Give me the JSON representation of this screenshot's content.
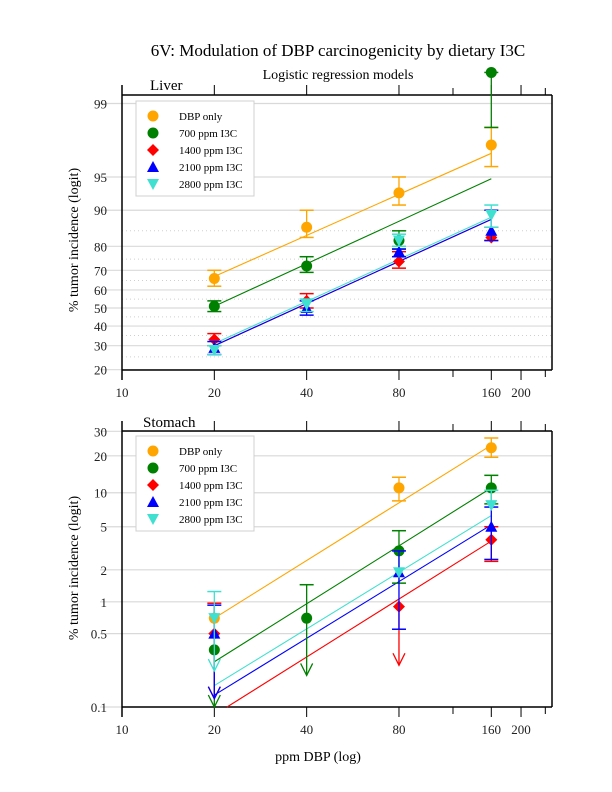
{
  "title": "6V: Modulation of DBP carcinogenicity by dietary I3C",
  "subtitle": "Logistic regression models",
  "xlabel": "ppm DBP (log)",
  "colors": {
    "DBP only": "#ffa500",
    "700 ppm I3C": "#008000",
    "1400 ppm I3C": "#ff0000",
    "2100 ppm I3C": "#0000ff",
    "2800 ppm I3C": "#40e0d0"
  },
  "chart_data": [
    {
      "type": "scatter",
      "panel": "Liver",
      "title": "Liver",
      "xlabel": "ppm DBP (log)",
      "ylabel": "% tumor incidence (logit)",
      "xscale": "log",
      "yscale": "logit",
      "xlim": [
        10,
        250
      ],
      "ylim": [
        20,
        99
      ],
      "xticks": [
        10,
        20,
        40,
        80,
        160,
        200
      ],
      "xtick_labels": [
        "10",
        "20",
        "40",
        "80",
        "160",
        "200"
      ],
      "yticks": [
        20,
        30,
        40,
        50,
        60,
        70,
        80,
        90,
        95,
        99
      ],
      "ytick_labels": [
        "20",
        "30",
        "40",
        "50",
        "60",
        "70",
        "80",
        "90",
        "95",
        "99"
      ],
      "legend": "top-left",
      "series": [
        {
          "name": "DBP only",
          "marker": "circle",
          "x": [
            20,
            40,
            80,
            160
          ],
          "y": [
            66,
            86,
            93,
            97.5
          ],
          "lo": [
            62,
            83,
            91,
            96
          ],
          "hi": [
            70,
            90,
            95,
            98.3
          ],
          "fit": {
            "x": [
              20,
              160
            ],
            "y": [
              67,
              97
            ]
          }
        },
        {
          "name": "700 ppm I3C",
          "marker": "circle",
          "x": [
            20,
            40,
            80,
            160
          ],
          "y": [
            51,
            72,
            82,
            99.5
          ],
          "lo": [
            48,
            69,
            79,
            98.3
          ],
          "hi": [
            54,
            76,
            85,
            99.5
          ],
          "fit": {
            "x": [
              20,
              160
            ],
            "y": [
              51,
              94.8
            ]
          }
        },
        {
          "name": "1400 ppm I3C",
          "marker": "diamond",
          "x": [
            20,
            40,
            80,
            160
          ],
          "y": [
            33,
            54,
            74,
            83
          ],
          "lo": [
            30,
            50,
            71,
            82
          ],
          "hi": [
            36,
            58,
            78,
            86
          ],
          "fit": {
            "x": [
              20,
              160
            ],
            "y": [
              30,
              88
            ]
          }
        },
        {
          "name": "2100 ppm I3C",
          "marker": "triangle-up",
          "x": [
            20,
            40,
            80,
            160
          ],
          "y": [
            29,
            50,
            78,
            85
          ],
          "lo": [
            26,
            46,
            76,
            82
          ],
          "hi": [
            32,
            54,
            79,
            90
          ],
          "fit": {
            "x": [
              20,
              160
            ],
            "y": [
              30,
              88
            ]
          }
        },
        {
          "name": "2800 ppm I3C",
          "marker": "triangle-down",
          "x": [
            20,
            40,
            80,
            160
          ],
          "y": [
            28,
            52,
            82,
            89
          ],
          "lo": [
            26,
            48,
            80,
            86
          ],
          "hi": [
            30,
            55,
            84,
            91
          ],
          "fit": {
            "x": [
              20,
              160
            ],
            "y": [
              31,
              88.5
            ]
          }
        }
      ]
    },
    {
      "type": "scatter",
      "panel": "Stomach",
      "title": "Stomach",
      "xlabel": "ppm DBP (log)",
      "ylabel": "% tumor incidence (logit)",
      "xscale": "log",
      "yscale": "logit",
      "xlim": [
        10,
        250
      ],
      "ylim": [
        0.1,
        30
      ],
      "xticks": [
        10,
        20,
        40,
        80,
        160,
        200
      ],
      "xtick_labels": [
        "10",
        "20",
        "40",
        "80",
        "160",
        "200"
      ],
      "yticks": [
        0.1,
        0.5,
        1,
        2,
        5,
        10,
        20,
        30
      ],
      "ytick_labels": [
        "0.1",
        "0.5",
        "1",
        "2",
        "5",
        "10",
        "20",
        "30"
      ],
      "legend": "top-left",
      "series": [
        {
          "name": "DBP only",
          "marker": "circle",
          "x": [
            20,
            80,
            160
          ],
          "y": [
            0.7,
            11,
            23
          ],
          "lo": [
            null,
            8.5,
            19.5
          ],
          "hi": [
            null,
            13.5,
            27
          ],
          "fit": {
            "x": [
              20,
              160
            ],
            "y": [
              0.7,
              24
            ]
          }
        },
        {
          "name": "700 ppm I3C",
          "marker": "circle",
          "x": [
            20,
            40,
            80,
            160
          ],
          "y": [
            0.35,
            0.7,
            3,
            11
          ],
          "lo": [
            0.1,
            0.2,
            1.5,
            8
          ],
          "hi": [
            null,
            1.45,
            4.6,
            14
          ],
          "fit": {
            "x": [
              20,
              160
            ],
            "y": [
              0.27,
              11
            ]
          }
        },
        {
          "name": "1400 ppm I3C",
          "marker": "diamond",
          "x": [
            20,
            80,
            160
          ],
          "y": [
            0.5,
            0.9,
            3.8
          ],
          "lo": [
            0.12,
            0.25,
            2.4
          ],
          "hi": [
            0.97,
            null,
            5
          ],
          "fit": {
            "x": [
              22,
              160
            ],
            "y": [
              0.1,
              3.7
            ]
          }
        },
        {
          "name": "2100 ppm I3C",
          "marker": "triangle-up",
          "x": [
            20,
            80,
            160
          ],
          "y": [
            0.5,
            1.9,
            5
          ],
          "lo": [
            0.12,
            0.55,
            2.5
          ],
          "hi": [
            0.93,
            3,
            7.5
          ],
          "fit": {
            "x": [
              20,
              160
            ],
            "y": [
              0.13,
              5.2
            ]
          }
        },
        {
          "name": "2800 ppm I3C",
          "marker": "triangle-down",
          "x": [
            20,
            80,
            160
          ],
          "y": [
            0.7,
            1.9,
            7.8
          ],
          "lo": [
            0.22,
            null,
            null
          ],
          "hi": [
            1.25,
            null,
            10.5
          ],
          "fit": {
            "x": [
              20,
              160
            ],
            "y": [
              0.16,
              6.3
            ]
          }
        }
      ]
    }
  ]
}
